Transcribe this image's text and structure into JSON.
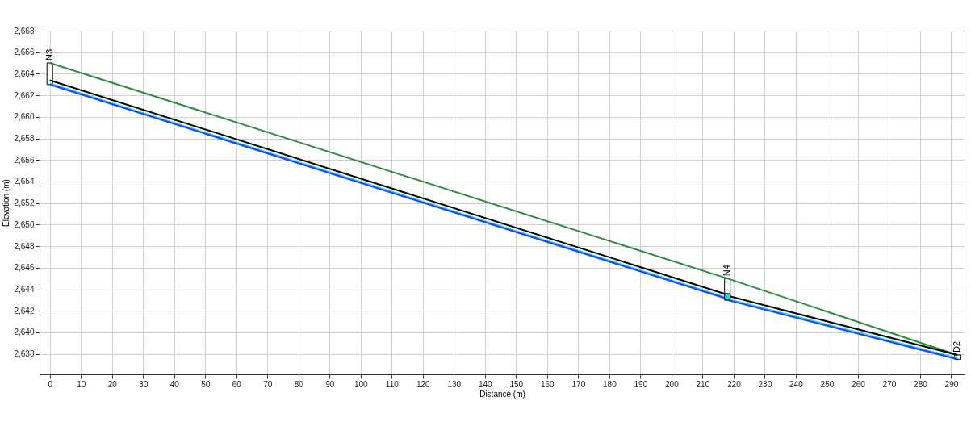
{
  "chart_data": {
    "type": "line",
    "xlabel": "Distance (m)",
    "ylabel": "Elevation (m)",
    "xlim": [
      -2,
      293
    ],
    "ylim": [
      2636.1,
      2668
    ],
    "xticks": [
      0,
      10,
      20,
      30,
      40,
      50,
      60,
      70,
      80,
      90,
      100,
      110,
      120,
      130,
      140,
      150,
      160,
      170,
      180,
      190,
      200,
      210,
      220,
      230,
      240,
      250,
      260,
      270,
      280,
      290
    ],
    "yticks": [
      {
        "value": 2638,
        "label": "2,638"
      },
      {
        "value": 2640,
        "label": "2,640"
      },
      {
        "value": 2642,
        "label": "2,642"
      },
      {
        "value": 2644,
        "label": "2,644"
      },
      {
        "value": 2646,
        "label": "2,646"
      },
      {
        "value": 2648,
        "label": "2,648"
      },
      {
        "value": 2650,
        "label": "2,650"
      },
      {
        "value": 2652,
        "label": "2,652"
      },
      {
        "value": 2654,
        "label": "2,654"
      },
      {
        "value": 2656,
        "label": "2,656"
      },
      {
        "value": 2658,
        "label": "2,658"
      },
      {
        "value": 2660,
        "label": "2,660"
      },
      {
        "value": 2662,
        "label": "2,662"
      },
      {
        "value": 2664,
        "label": "2,664"
      },
      {
        "value": 2666,
        "label": "2,666"
      },
      {
        "value": 2668,
        "label": "2,668"
      }
    ],
    "grid": true,
    "marker": "none",
    "line_style": "solid",
    "series": [
      {
        "type": "bar",
        "color": "#ffffff",
        "x": [
          0,
          218,
          292
        ],
        "base": [
          2663,
          2643,
          2637.5
        ],
        "values": [
          2,
          2,
          0.4
        ],
        "value_labels": [
          "N3",
          "N4",
          "D2"
        ]
      },
      {
        "color": "#2e8b3e",
        "x": [
          0,
          218,
          292
        ],
        "values": [
          2665,
          2645,
          2637.9
        ]
      },
      {
        "color": "#000000",
        "x": [
          0,
          218,
          218,
          292
        ],
        "values": [
          2663.4,
          2643.5,
          2643.4,
          2637.9
        ]
      },
      {
        "color": "#22d8e0",
        "x": [
          0,
          218,
          218,
          292
        ],
        "values": [
          2663.1,
          2643.2,
          2643.1,
          2637.6
        ]
      },
      {
        "color": "#1f3fff",
        "x": [
          0,
          218,
          218,
          292
        ],
        "values": [
          2663,
          2643.1,
          2643,
          2637.5
        ]
      },
      {
        "type": "bar",
        "color": "#22d8e0",
        "x": [
          218
        ],
        "base": [
          2643
        ],
        "values": [
          0.6
        ]
      }
    ]
  }
}
